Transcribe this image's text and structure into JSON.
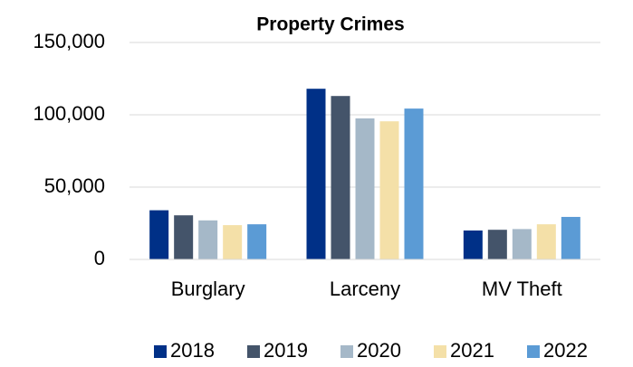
{
  "chart_data": {
    "type": "bar",
    "title": "Property Crimes",
    "categories": [
      "Burglary",
      "Larceny",
      "MV Theft"
    ],
    "series": [
      {
        "name": "2018",
        "color": "#003087",
        "values": [
          34000,
          118000,
          20000
        ]
      },
      {
        "name": "2019",
        "color": "#44546a",
        "values": [
          30500,
          113000,
          20500
        ]
      },
      {
        "name": "2020",
        "color": "#a5b8c8",
        "values": [
          27000,
          97500,
          21000
        ]
      },
      {
        "name": "2021",
        "color": "#f4e0a8",
        "values": [
          23700,
          95500,
          24300
        ]
      },
      {
        "name": "2022",
        "color": "#5b9bd5",
        "values": [
          24300,
          104300,
          29400
        ]
      }
    ],
    "ylim": [
      0,
      150000
    ],
    "yticks": [
      0,
      {
        "value": 50000,
        "label": "50,000"
      },
      {
        "value": 100000,
        "label": "100,000"
      },
      {
        "value": 150000,
        "label": "150,000"
      }
    ],
    "grid": true,
    "legend": "bottom"
  }
}
